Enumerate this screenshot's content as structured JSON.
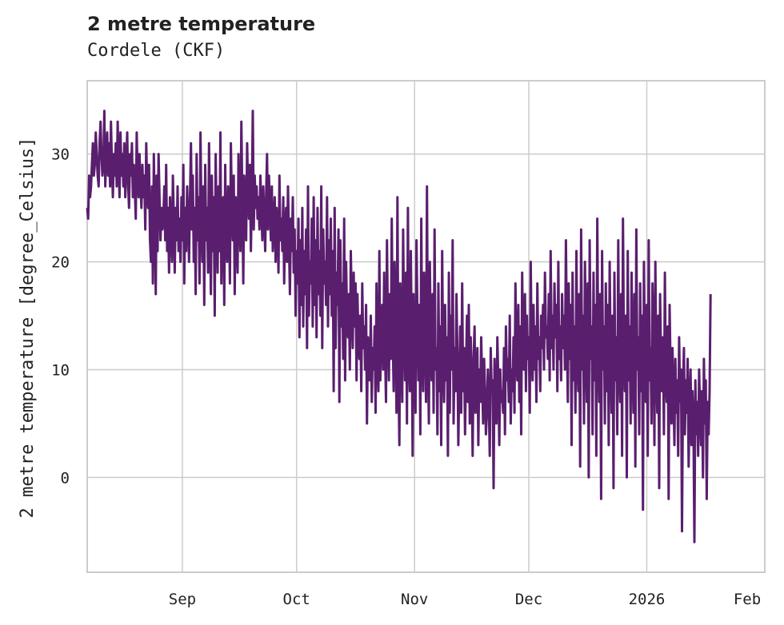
{
  "chart_data": {
    "type": "line",
    "title": "2 metre temperature",
    "subtitle": "Cordele (CKF)",
    "xlabel": "",
    "ylabel": "2 metre temperature [degree_Celsius]",
    "x_range": [
      "2025-08-07",
      "2026-02-01"
    ],
    "ylim": [
      -8.8,
      36.8
    ],
    "grid": true,
    "legend": "none",
    "color": "#5a1e6e",
    "y_ticks": [
      0,
      10,
      20,
      30
    ],
    "x_ticks": [
      {
        "date": "2025-09-01",
        "label": "Sep"
      },
      {
        "date": "2025-10-01",
        "label": "Oct"
      },
      {
        "date": "2025-11-01",
        "label": "Nov"
      },
      {
        "date": "2025-12-01",
        "label": "Dec"
      },
      {
        "date": "2026-01-01",
        "label": "2026"
      },
      {
        "date": "2026-02-01",
        "label": "Feb"
      }
    ],
    "series": [
      {
        "name": "2 metre temperature",
        "interval_hours": 6,
        "start": "2025-08-07",
        "values": [
          25,
          24,
          28,
          26,
          27,
          29,
          31,
          28,
          29,
          32,
          30,
          28,
          27,
          31,
          33,
          30,
          28,
          29,
          34,
          27,
          30,
          32,
          28,
          31,
          27,
          33,
          29,
          26,
          30,
          28,
          31,
          27,
          33,
          29,
          26,
          32,
          28,
          30,
          27,
          31,
          26,
          29,
          32,
          27,
          25,
          30,
          28,
          31,
          26,
          29,
          27,
          24,
          32,
          28,
          26,
          30,
          27,
          25,
          29,
          26,
          28,
          23,
          31,
          27,
          25,
          29,
          22,
          20,
          27,
          18,
          30,
          24,
          17,
          28,
          21,
          30,
          26,
          22,
          25,
          23,
          24,
          27,
          22,
          29,
          21,
          25,
          19,
          26,
          23,
          20,
          28,
          24,
          19,
          25,
          22,
          27,
          21,
          24,
          20,
          26,
          22,
          29,
          18,
          25,
          21,
          27,
          24,
          20,
          26,
          31,
          23,
          28,
          20,
          25,
          17,
          30,
          22,
          26,
          18,
          32,
          24,
          20,
          27,
          16,
          29,
          22,
          25,
          19,
          31,
          23,
          17,
          28,
          21,
          26,
          15,
          30,
          23,
          19,
          27,
          21,
          32,
          18,
          24,
          26,
          16,
          29,
          22,
          20,
          27,
          24,
          18,
          31,
          25,
          22,
          28,
          17,
          26,
          23,
          19,
          30,
          24,
          21,
          33,
          26,
          18,
          28,
          25,
          22,
          31,
          27,
          24,
          29,
          21,
          26,
          34,
          23,
          28,
          25,
          27,
          24,
          26,
          23,
          28,
          25,
          22,
          27,
          24,
          21,
          26,
          30,
          23,
          28,
          25,
          22,
          27,
          21,
          24,
          26,
          20,
          25,
          23,
          19,
          28,
          22,
          24,
          21,
          26,
          18,
          23,
          25,
          20,
          27,
          22,
          17,
          24,
          21,
          26,
          19,
          23,
          15,
          21,
          18,
          24,
          13,
          22,
          16,
          25,
          14,
          21,
          17,
          23,
          12,
          27,
          15,
          20,
          18,
          24,
          14,
          26,
          16,
          22,
          13,
          25,
          17,
          21,
          15,
          27,
          12,
          23,
          18,
          20,
          16,
          26,
          14,
          22,
          17,
          24,
          15,
          21,
          8,
          25,
          12,
          19,
          16,
          23,
          7,
          22,
          14,
          18,
          11,
          24,
          9,
          20,
          15,
          13,
          17,
          10,
          21,
          16,
          12,
          19,
          14,
          18,
          9,
          17,
          13,
          11,
          15,
          8,
          18,
          12,
          14,
          10,
          16,
          5,
          13,
          11,
          9,
          15,
          7,
          12,
          10,
          14,
          6,
          18,
          11,
          8,
          21,
          9,
          13,
          16,
          10,
          19,
          12,
          7,
          22,
          14,
          9,
          17,
          11,
          24,
          13,
          8,
          20,
          15,
          6,
          26,
          10,
          3,
          18,
          12,
          7,
          23,
          14,
          9,
          19,
          5,
          25,
          11,
          8,
          21,
          13,
          2,
          17,
          10,
          6,
          22,
          15,
          9,
          16,
          4,
          24,
          12,
          8,
          19,
          14,
          7,
          27,
          11,
          5,
          20,
          13,
          9,
          17,
          6,
          23,
          10,
          12,
          4,
          18,
          8,
          14,
          3,
          21,
          11,
          7,
          16,
          9,
          13,
          2,
          19,
          6,
          15,
          10,
          22,
          5,
          12,
          8,
          17,
          11,
          3,
          9,
          14,
          6,
          18,
          8,
          12,
          4,
          10,
          15,
          7,
          16,
          5,
          13,
          9,
          2,
          11,
          14,
          6,
          8,
          12,
          3,
          10,
          7,
          13,
          9,
          5,
          11,
          8,
          4,
          6,
          10,
          7,
          2,
          12,
          8,
          9,
          -1,
          11,
          6,
          5,
          13,
          9,
          3,
          10,
          7,
          8,
          6,
          12,
          4,
          14,
          9,
          11,
          7,
          15,
          5,
          10,
          8,
          13,
          6,
          18,
          11,
          9,
          16,
          7,
          14,
          4,
          19,
          12,
          10,
          17,
          8,
          15,
          11,
          13,
          6,
          20,
          12,
          9,
          16,
          10,
          14,
          7,
          18,
          11,
          13,
          8,
          15,
          12,
          16,
          10,
          19,
          13,
          14,
          11,
          17,
          9,
          21,
          12,
          15,
          10,
          18,
          13,
          16,
          8,
          20,
          11,
          14,
          9,
          17,
          12,
          15,
          10,
          22,
          13,
          7,
          18,
          11,
          16,
          3,
          19,
          9,
          14,
          6,
          21,
          12,
          8,
          17,
          1,
          23,
          10,
          15,
          5,
          20,
          13,
          7,
          18,
          0,
          22,
          11,
          14,
          4,
          19,
          9,
          16,
          2,
          24,
          12,
          7,
          17,
          -2,
          21,
          10,
          14,
          5,
          18,
          8,
          16,
          3,
          20,
          11,
          6,
          15,
          -1,
          19,
          9,
          13,
          4,
          22,
          10,
          7,
          17,
          2,
          24,
          12,
          8,
          15,
          0,
          21,
          9,
          14,
          5,
          19,
          11,
          6,
          17,
          1,
          23,
          10,
          13,
          4,
          18,
          8,
          15,
          -3,
          20,
          11,
          7,
          16,
          2,
          22,
          9,
          12,
          5,
          18,
          14,
          3,
          20,
          10,
          6,
          15,
          -1,
          17,
          11,
          8,
          13,
          4,
          19,
          9,
          7,
          14,
          -2,
          16,
          10,
          5,
          12,
          8,
          3,
          11,
          6,
          9,
          2,
          13,
          7,
          10,
          -5,
          8,
          12,
          4,
          9,
          6,
          11,
          1,
          7,
          10,
          3,
          8,
          5,
          -6,
          9,
          4,
          7,
          2,
          10,
          6,
          3,
          8,
          0,
          11,
          5,
          9,
          -2,
          7,
          4,
          8,
          17
        ]
      }
    ]
  }
}
